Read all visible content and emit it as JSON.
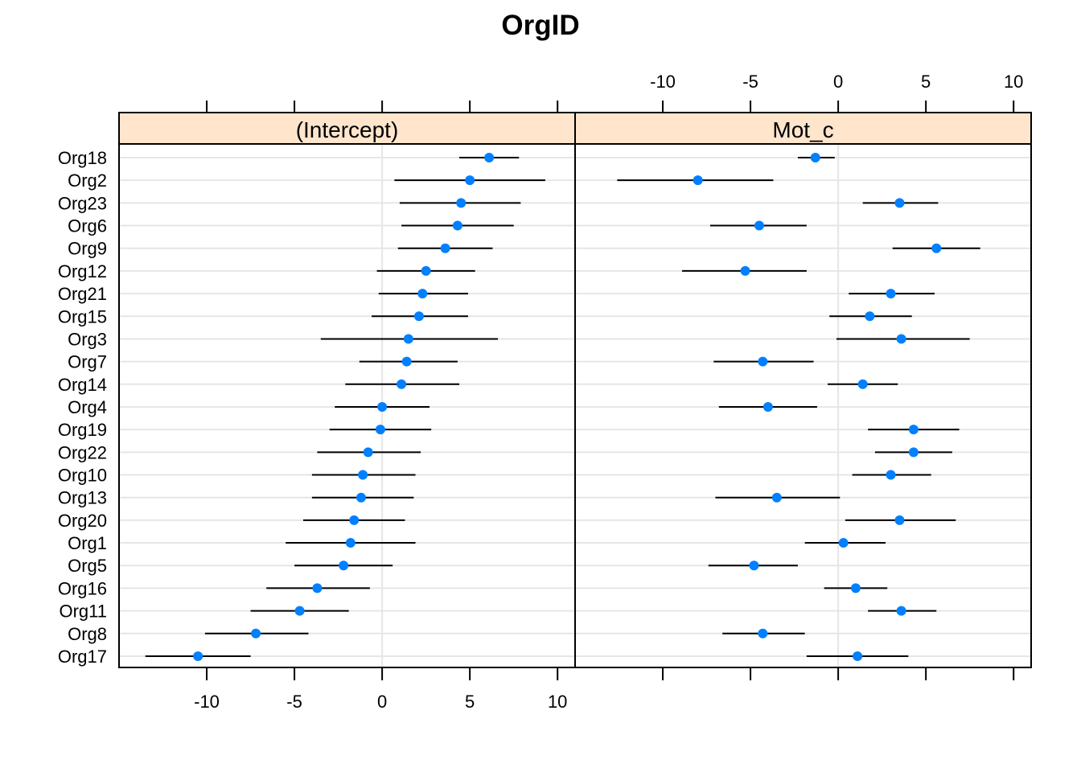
{
  "chart_data": {
    "type": "dotplot-errorbar",
    "title": "OrgID",
    "categories": [
      "Org18",
      "Org2",
      "Org23",
      "Org6",
      "Org9",
      "Org12",
      "Org21",
      "Org15",
      "Org3",
      "Org7",
      "Org14",
      "Org4",
      "Org19",
      "Org22",
      "Org10",
      "Org13",
      "Org20",
      "Org1",
      "Org5",
      "Org16",
      "Org11",
      "Org8",
      "Org17"
    ],
    "xlim": [
      -15,
      11
    ],
    "ticks": [
      -10,
      -5,
      0,
      5,
      10
    ],
    "grid": true,
    "colors": {
      "point": "#0080ff",
      "strip": "#ffe5cc",
      "grid": "#e6e6e6",
      "interval": "#000000"
    },
    "panels": [
      {
        "name": "(Intercept)",
        "series": [
          {
            "est": 6.1,
            "lo": 4.4,
            "hi": 7.8
          },
          {
            "est": 5.0,
            "lo": 0.7,
            "hi": 9.3
          },
          {
            "est": 4.5,
            "lo": 1.0,
            "hi": 7.9
          },
          {
            "est": 4.3,
            "lo": 1.1,
            "hi": 7.5
          },
          {
            "est": 3.6,
            "lo": 0.9,
            "hi": 6.3
          },
          {
            "est": 2.5,
            "lo": -0.3,
            "hi": 5.3
          },
          {
            "est": 2.3,
            "lo": -0.2,
            "hi": 4.9
          },
          {
            "est": 2.1,
            "lo": -0.6,
            "hi": 4.9
          },
          {
            "est": 1.5,
            "lo": -3.5,
            "hi": 6.6
          },
          {
            "est": 1.4,
            "lo": -1.3,
            "hi": 4.3
          },
          {
            "est": 1.1,
            "lo": -2.1,
            "hi": 4.4
          },
          {
            "est": 0.0,
            "lo": -2.7,
            "hi": 2.7
          },
          {
            "est": -0.1,
            "lo": -3.0,
            "hi": 2.8
          },
          {
            "est": -0.8,
            "lo": -3.7,
            "hi": 2.2
          },
          {
            "est": -1.1,
            "lo": -4.0,
            "hi": 1.9
          },
          {
            "est": -1.2,
            "lo": -4.0,
            "hi": 1.8
          },
          {
            "est": -1.6,
            "lo": -4.5,
            "hi": 1.3
          },
          {
            "est": -1.8,
            "lo": -5.5,
            "hi": 1.9
          },
          {
            "est": -2.2,
            "lo": -5.0,
            "hi": 0.6
          },
          {
            "est": -3.7,
            "lo": -6.6,
            "hi": -0.7
          },
          {
            "est": -4.7,
            "lo": -7.5,
            "hi": -1.9
          },
          {
            "est": -7.2,
            "lo": -10.1,
            "hi": -4.2
          },
          {
            "est": -10.5,
            "lo": -13.5,
            "hi": -7.5
          }
        ]
      },
      {
        "name": "Mot_c",
        "series": [
          {
            "est": -1.3,
            "lo": -2.3,
            "hi": -0.2
          },
          {
            "est": -8.0,
            "lo": -12.6,
            "hi": -3.7
          },
          {
            "est": 3.5,
            "lo": 1.4,
            "hi": 5.7
          },
          {
            "est": -4.5,
            "lo": -7.3,
            "hi": -1.8
          },
          {
            "est": 5.6,
            "lo": 3.1,
            "hi": 8.1
          },
          {
            "est": -5.3,
            "lo": -8.9,
            "hi": -1.8
          },
          {
            "est": 3.0,
            "lo": 0.6,
            "hi": 5.5
          },
          {
            "est": 1.8,
            "lo": -0.5,
            "hi": 4.2
          },
          {
            "est": 3.6,
            "lo": -0.1,
            "hi": 7.5
          },
          {
            "est": -4.3,
            "lo": -7.1,
            "hi": -1.4
          },
          {
            "est": 1.4,
            "lo": -0.6,
            "hi": 3.4
          },
          {
            "est": -4.0,
            "lo": -6.8,
            "hi": -1.2
          },
          {
            "est": 4.3,
            "lo": 1.7,
            "hi": 6.9
          },
          {
            "est": 4.3,
            "lo": 2.1,
            "hi": 6.5
          },
          {
            "est": 3.0,
            "lo": 0.8,
            "hi": 5.3
          },
          {
            "est": -3.5,
            "lo": -7.0,
            "hi": 0.1
          },
          {
            "est": 3.5,
            "lo": 0.4,
            "hi": 6.7
          },
          {
            "est": 0.3,
            "lo": -1.9,
            "hi": 2.7
          },
          {
            "est": -4.8,
            "lo": -7.4,
            "hi": -2.3
          },
          {
            "est": 1.0,
            "lo": -0.8,
            "hi": 2.8
          },
          {
            "est": 3.6,
            "lo": 1.7,
            "hi": 5.6
          },
          {
            "est": -4.3,
            "lo": -6.6,
            "hi": -1.9
          },
          {
            "est": 1.1,
            "lo": -1.8,
            "hi": 4.0
          }
        ]
      }
    ]
  }
}
